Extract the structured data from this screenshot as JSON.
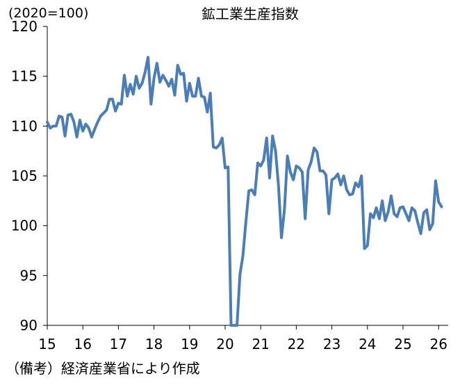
{
  "chart_data": {
    "type": "line",
    "title": "鉱工業生産指数",
    "unit_label": "(2020=100)",
    "source_note": "（備考）経済産業省により作成",
    "ylim": [
      90,
      120
    ],
    "y_ticks": [
      90,
      95,
      100,
      105,
      110,
      115,
      120
    ],
    "x_ticks": [
      "15",
      "16",
      "17",
      "18",
      "19",
      "20",
      "21",
      "22",
      "23",
      "24",
      "25",
      "26"
    ],
    "x_start_year": 2015,
    "grid": false,
    "line_color": "#4a7ebb",
    "series": [
      {
        "values": [
          110.4,
          109.8,
          110.0,
          110.0,
          111.0,
          110.9,
          109.0,
          111.1,
          111.2,
          110.4,
          108.9,
          110.6,
          109.5,
          110.2,
          109.8,
          108.9,
          109.7,
          110.4,
          111.0,
          111.3,
          111.6,
          112.7,
          112.7,
          111.5,
          112.3,
          112.2,
          115.1,
          113.0,
          114.2,
          113.2,
          115.0,
          113.8,
          114.3,
          115.4,
          116.9,
          112.2,
          114.8,
          116.3,
          114.4,
          115.1,
          114.6,
          114.0,
          114.7,
          113.1,
          116.1,
          115.2,
          115.3,
          112.5,
          114.3,
          113.0,
          113.0,
          114.8,
          113.0,
          112.9,
          111.4,
          113.3,
          107.9,
          107.8,
          108.1,
          108.8,
          105.8,
          105.9,
          90.0,
          89.9,
          89.9,
          95.1,
          97.0,
          100.4,
          103.5,
          103.6,
          103.1,
          106.3,
          106.0,
          106.6,
          108.8,
          104.8,
          109.0,
          107.5,
          104.0,
          98.8,
          101.6,
          107.0,
          105.4,
          104.6,
          106.0,
          105.8,
          105.4,
          100.7,
          105.6,
          106.4,
          107.8,
          107.4,
          105.5,
          105.5,
          105.1,
          101.2,
          104.6,
          104.8,
          105.2,
          104.1,
          105.0,
          103.6,
          103.1,
          103.2,
          104.3,
          103.9,
          105.0,
          97.7,
          98.0,
          101.2,
          100.8,
          101.8,
          100.7,
          102.5,
          100.5,
          101.4,
          103.0,
          101.2,
          100.9,
          101.8,
          101.9,
          101.2,
          100.5,
          101.8,
          101.5,
          100.3,
          99.2,
          101.3,
          101.6,
          99.6,
          100.2,
          104.5,
          102.4,
          101.9
        ]
      }
    ]
  }
}
